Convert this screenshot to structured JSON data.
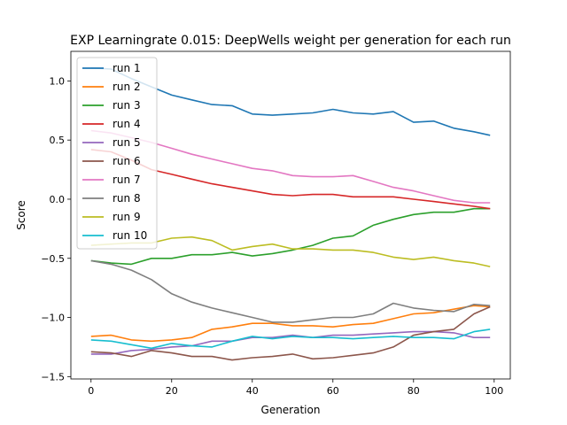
{
  "chart_data": {
    "type": "line",
    "title": "EXP Learningrate 0.015: DeepWells weight per generation for each run",
    "xlabel": "Generation",
    "ylabel": "Score",
    "xlim": [
      -5,
      104
    ],
    "ylim": [
      -1.52,
      1.25
    ],
    "xticks": [
      0,
      20,
      40,
      60,
      80,
      100
    ],
    "xtick_labels": [
      "0",
      "20",
      "40",
      "60",
      "80",
      "100"
    ],
    "yticks": [
      -1.5,
      -1.0,
      -0.5,
      0.0,
      0.5,
      1.0
    ],
    "ytick_labels": [
      "−1.5",
      "−1.0",
      "−0.5",
      "0.0",
      "0.5",
      "1.0"
    ],
    "grid": false,
    "legend_position": "upper-left",
    "series": [
      {
        "name": "run 1",
        "color": "#1f77b4",
        "points": [
          [
            0,
            1.11
          ],
          [
            5,
            1.1
          ],
          [
            10,
            1.02
          ],
          [
            15,
            0.95
          ],
          [
            20,
            0.88
          ],
          [
            25,
            0.84
          ],
          [
            30,
            0.8
          ],
          [
            35,
            0.79
          ],
          [
            40,
            0.72
          ],
          [
            45,
            0.71
          ],
          [
            50,
            0.72
          ],
          [
            55,
            0.73
          ],
          [
            60,
            0.76
          ],
          [
            65,
            0.73
          ],
          [
            70,
            0.72
          ],
          [
            75,
            0.74
          ],
          [
            80,
            0.65
          ],
          [
            85,
            0.66
          ],
          [
            90,
            0.6
          ],
          [
            95,
            0.57
          ],
          [
            99,
            0.54
          ]
        ]
      },
      {
        "name": "run 2",
        "color": "#ff7f0e",
        "points": [
          [
            0,
            -1.16
          ],
          [
            5,
            -1.15
          ],
          [
            10,
            -1.19
          ],
          [
            15,
            -1.2
          ],
          [
            20,
            -1.19
          ],
          [
            25,
            -1.17
          ],
          [
            30,
            -1.1
          ],
          [
            35,
            -1.08
          ],
          [
            40,
            -1.05
          ],
          [
            45,
            -1.05
          ],
          [
            50,
            -1.07
          ],
          [
            55,
            -1.07
          ],
          [
            60,
            -1.08
          ],
          [
            65,
            -1.06
          ],
          [
            70,
            -1.05
          ],
          [
            75,
            -1.01
          ],
          [
            80,
            -0.97
          ],
          [
            85,
            -0.96
          ],
          [
            90,
            -0.93
          ],
          [
            95,
            -0.9
          ],
          [
            99,
            -0.91
          ]
        ]
      },
      {
        "name": "run 3",
        "color": "#2ca02c",
        "points": [
          [
            0,
            -0.52
          ],
          [
            5,
            -0.54
          ],
          [
            10,
            -0.55
          ],
          [
            15,
            -0.5
          ],
          [
            20,
            -0.5
          ],
          [
            25,
            -0.47
          ],
          [
            30,
            -0.47
          ],
          [
            35,
            -0.45
          ],
          [
            40,
            -0.48
          ],
          [
            45,
            -0.46
          ],
          [
            50,
            -0.43
          ],
          [
            55,
            -0.39
          ],
          [
            60,
            -0.33
          ],
          [
            65,
            -0.31
          ],
          [
            70,
            -0.22
          ],
          [
            75,
            -0.17
          ],
          [
            80,
            -0.13
          ],
          [
            85,
            -0.11
          ],
          [
            90,
            -0.11
          ],
          [
            95,
            -0.08
          ],
          [
            99,
            -0.08
          ]
        ]
      },
      {
        "name": "run 4",
        "color": "#d62728",
        "points": [
          [
            0,
            0.42
          ],
          [
            5,
            0.4
          ],
          [
            10,
            0.33
          ],
          [
            15,
            0.25
          ],
          [
            20,
            0.21
          ],
          [
            25,
            0.17
          ],
          [
            30,
            0.13
          ],
          [
            35,
            0.1
          ],
          [
            40,
            0.07
          ],
          [
            45,
            0.04
          ],
          [
            50,
            0.03
          ],
          [
            55,
            0.04
          ],
          [
            60,
            0.04
          ],
          [
            65,
            0.02
          ],
          [
            70,
            0.02
          ],
          [
            75,
            0.02
          ],
          [
            80,
            0.0
          ],
          [
            85,
            -0.02
          ],
          [
            90,
            -0.04
          ],
          [
            95,
            -0.06
          ],
          [
            99,
            -0.08
          ]
        ]
      },
      {
        "name": "run 5",
        "color": "#9467bd",
        "points": [
          [
            0,
            -1.31
          ],
          [
            5,
            -1.31
          ],
          [
            10,
            -1.28
          ],
          [
            15,
            -1.27
          ],
          [
            20,
            -1.25
          ],
          [
            25,
            -1.24
          ],
          [
            30,
            -1.2
          ],
          [
            35,
            -1.2
          ],
          [
            40,
            -1.17
          ],
          [
            45,
            -1.17
          ],
          [
            50,
            -1.15
          ],
          [
            55,
            -1.17
          ],
          [
            60,
            -1.15
          ],
          [
            65,
            -1.15
          ],
          [
            70,
            -1.14
          ],
          [
            75,
            -1.13
          ],
          [
            80,
            -1.12
          ],
          [
            85,
            -1.12
          ],
          [
            90,
            -1.13
          ],
          [
            95,
            -1.17
          ],
          [
            99,
            -1.17
          ]
        ]
      },
      {
        "name": "run 6",
        "color": "#8c564b",
        "points": [
          [
            0,
            -1.29
          ],
          [
            5,
            -1.3
          ],
          [
            10,
            -1.33
          ],
          [
            15,
            -1.28
          ],
          [
            20,
            -1.3
          ],
          [
            25,
            -1.33
          ],
          [
            30,
            -1.33
          ],
          [
            35,
            -1.36
          ],
          [
            40,
            -1.34
          ],
          [
            45,
            -1.33
          ],
          [
            50,
            -1.31
          ],
          [
            55,
            -1.35
          ],
          [
            60,
            -1.34
          ],
          [
            65,
            -1.32
          ],
          [
            70,
            -1.3
          ],
          [
            75,
            -1.25
          ],
          [
            80,
            -1.15
          ],
          [
            85,
            -1.12
          ],
          [
            90,
            -1.1
          ],
          [
            95,
            -0.97
          ],
          [
            99,
            -0.91
          ]
        ]
      },
      {
        "name": "run 7",
        "color": "#e377c2",
        "points": [
          [
            0,
            0.58
          ],
          [
            5,
            0.56
          ],
          [
            10,
            0.52
          ],
          [
            15,
            0.48
          ],
          [
            20,
            0.43
          ],
          [
            25,
            0.38
          ],
          [
            30,
            0.34
          ],
          [
            35,
            0.3
          ],
          [
            40,
            0.26
          ],
          [
            45,
            0.24
          ],
          [
            50,
            0.2
          ],
          [
            55,
            0.19
          ],
          [
            60,
            0.19
          ],
          [
            65,
            0.2
          ],
          [
            70,
            0.15
          ],
          [
            75,
            0.1
          ],
          [
            80,
            0.07
          ],
          [
            85,
            0.03
          ],
          [
            90,
            -0.01
          ],
          [
            95,
            -0.03
          ],
          [
            99,
            -0.03
          ]
        ]
      },
      {
        "name": "run 8",
        "color": "#7f7f7f",
        "points": [
          [
            0,
            -0.52
          ],
          [
            5,
            -0.55
          ],
          [
            10,
            -0.6
          ],
          [
            15,
            -0.68
          ],
          [
            20,
            -0.8
          ],
          [
            25,
            -0.87
          ],
          [
            30,
            -0.92
          ],
          [
            35,
            -0.96
          ],
          [
            40,
            -1.0
          ],
          [
            45,
            -1.04
          ],
          [
            50,
            -1.04
          ],
          [
            55,
            -1.02
          ],
          [
            60,
            -1.0
          ],
          [
            65,
            -1.0
          ],
          [
            70,
            -0.97
          ],
          [
            75,
            -0.88
          ],
          [
            80,
            -0.92
          ],
          [
            85,
            -0.94
          ],
          [
            90,
            -0.95
          ],
          [
            95,
            -0.89
          ],
          [
            99,
            -0.9
          ]
        ]
      },
      {
        "name": "run 9",
        "color": "#bcbd22",
        "points": [
          [
            0,
            -0.39
          ],
          [
            5,
            -0.38
          ],
          [
            10,
            -0.37
          ],
          [
            15,
            -0.37
          ],
          [
            20,
            -0.33
          ],
          [
            25,
            -0.32
          ],
          [
            30,
            -0.35
          ],
          [
            35,
            -0.43
          ],
          [
            40,
            -0.4
          ],
          [
            45,
            -0.38
          ],
          [
            50,
            -0.42
          ],
          [
            55,
            -0.42
          ],
          [
            60,
            -0.43
          ],
          [
            65,
            -0.43
          ],
          [
            70,
            -0.45
          ],
          [
            75,
            -0.49
          ],
          [
            80,
            -0.51
          ],
          [
            85,
            -0.49
          ],
          [
            90,
            -0.52
          ],
          [
            95,
            -0.54
          ],
          [
            99,
            -0.57
          ]
        ]
      },
      {
        "name": "run 10",
        "color": "#17becf",
        "points": [
          [
            0,
            -1.19
          ],
          [
            5,
            -1.2
          ],
          [
            10,
            -1.23
          ],
          [
            15,
            -1.26
          ],
          [
            20,
            -1.22
          ],
          [
            25,
            -1.24
          ],
          [
            30,
            -1.25
          ],
          [
            35,
            -1.2
          ],
          [
            40,
            -1.16
          ],
          [
            45,
            -1.18
          ],
          [
            50,
            -1.16
          ],
          [
            55,
            -1.17
          ],
          [
            60,
            -1.17
          ],
          [
            65,
            -1.18
          ],
          [
            70,
            -1.17
          ],
          [
            75,
            -1.16
          ],
          [
            80,
            -1.17
          ],
          [
            85,
            -1.17
          ],
          [
            90,
            -1.18
          ],
          [
            95,
            -1.12
          ],
          [
            99,
            -1.1
          ]
        ]
      }
    ]
  }
}
